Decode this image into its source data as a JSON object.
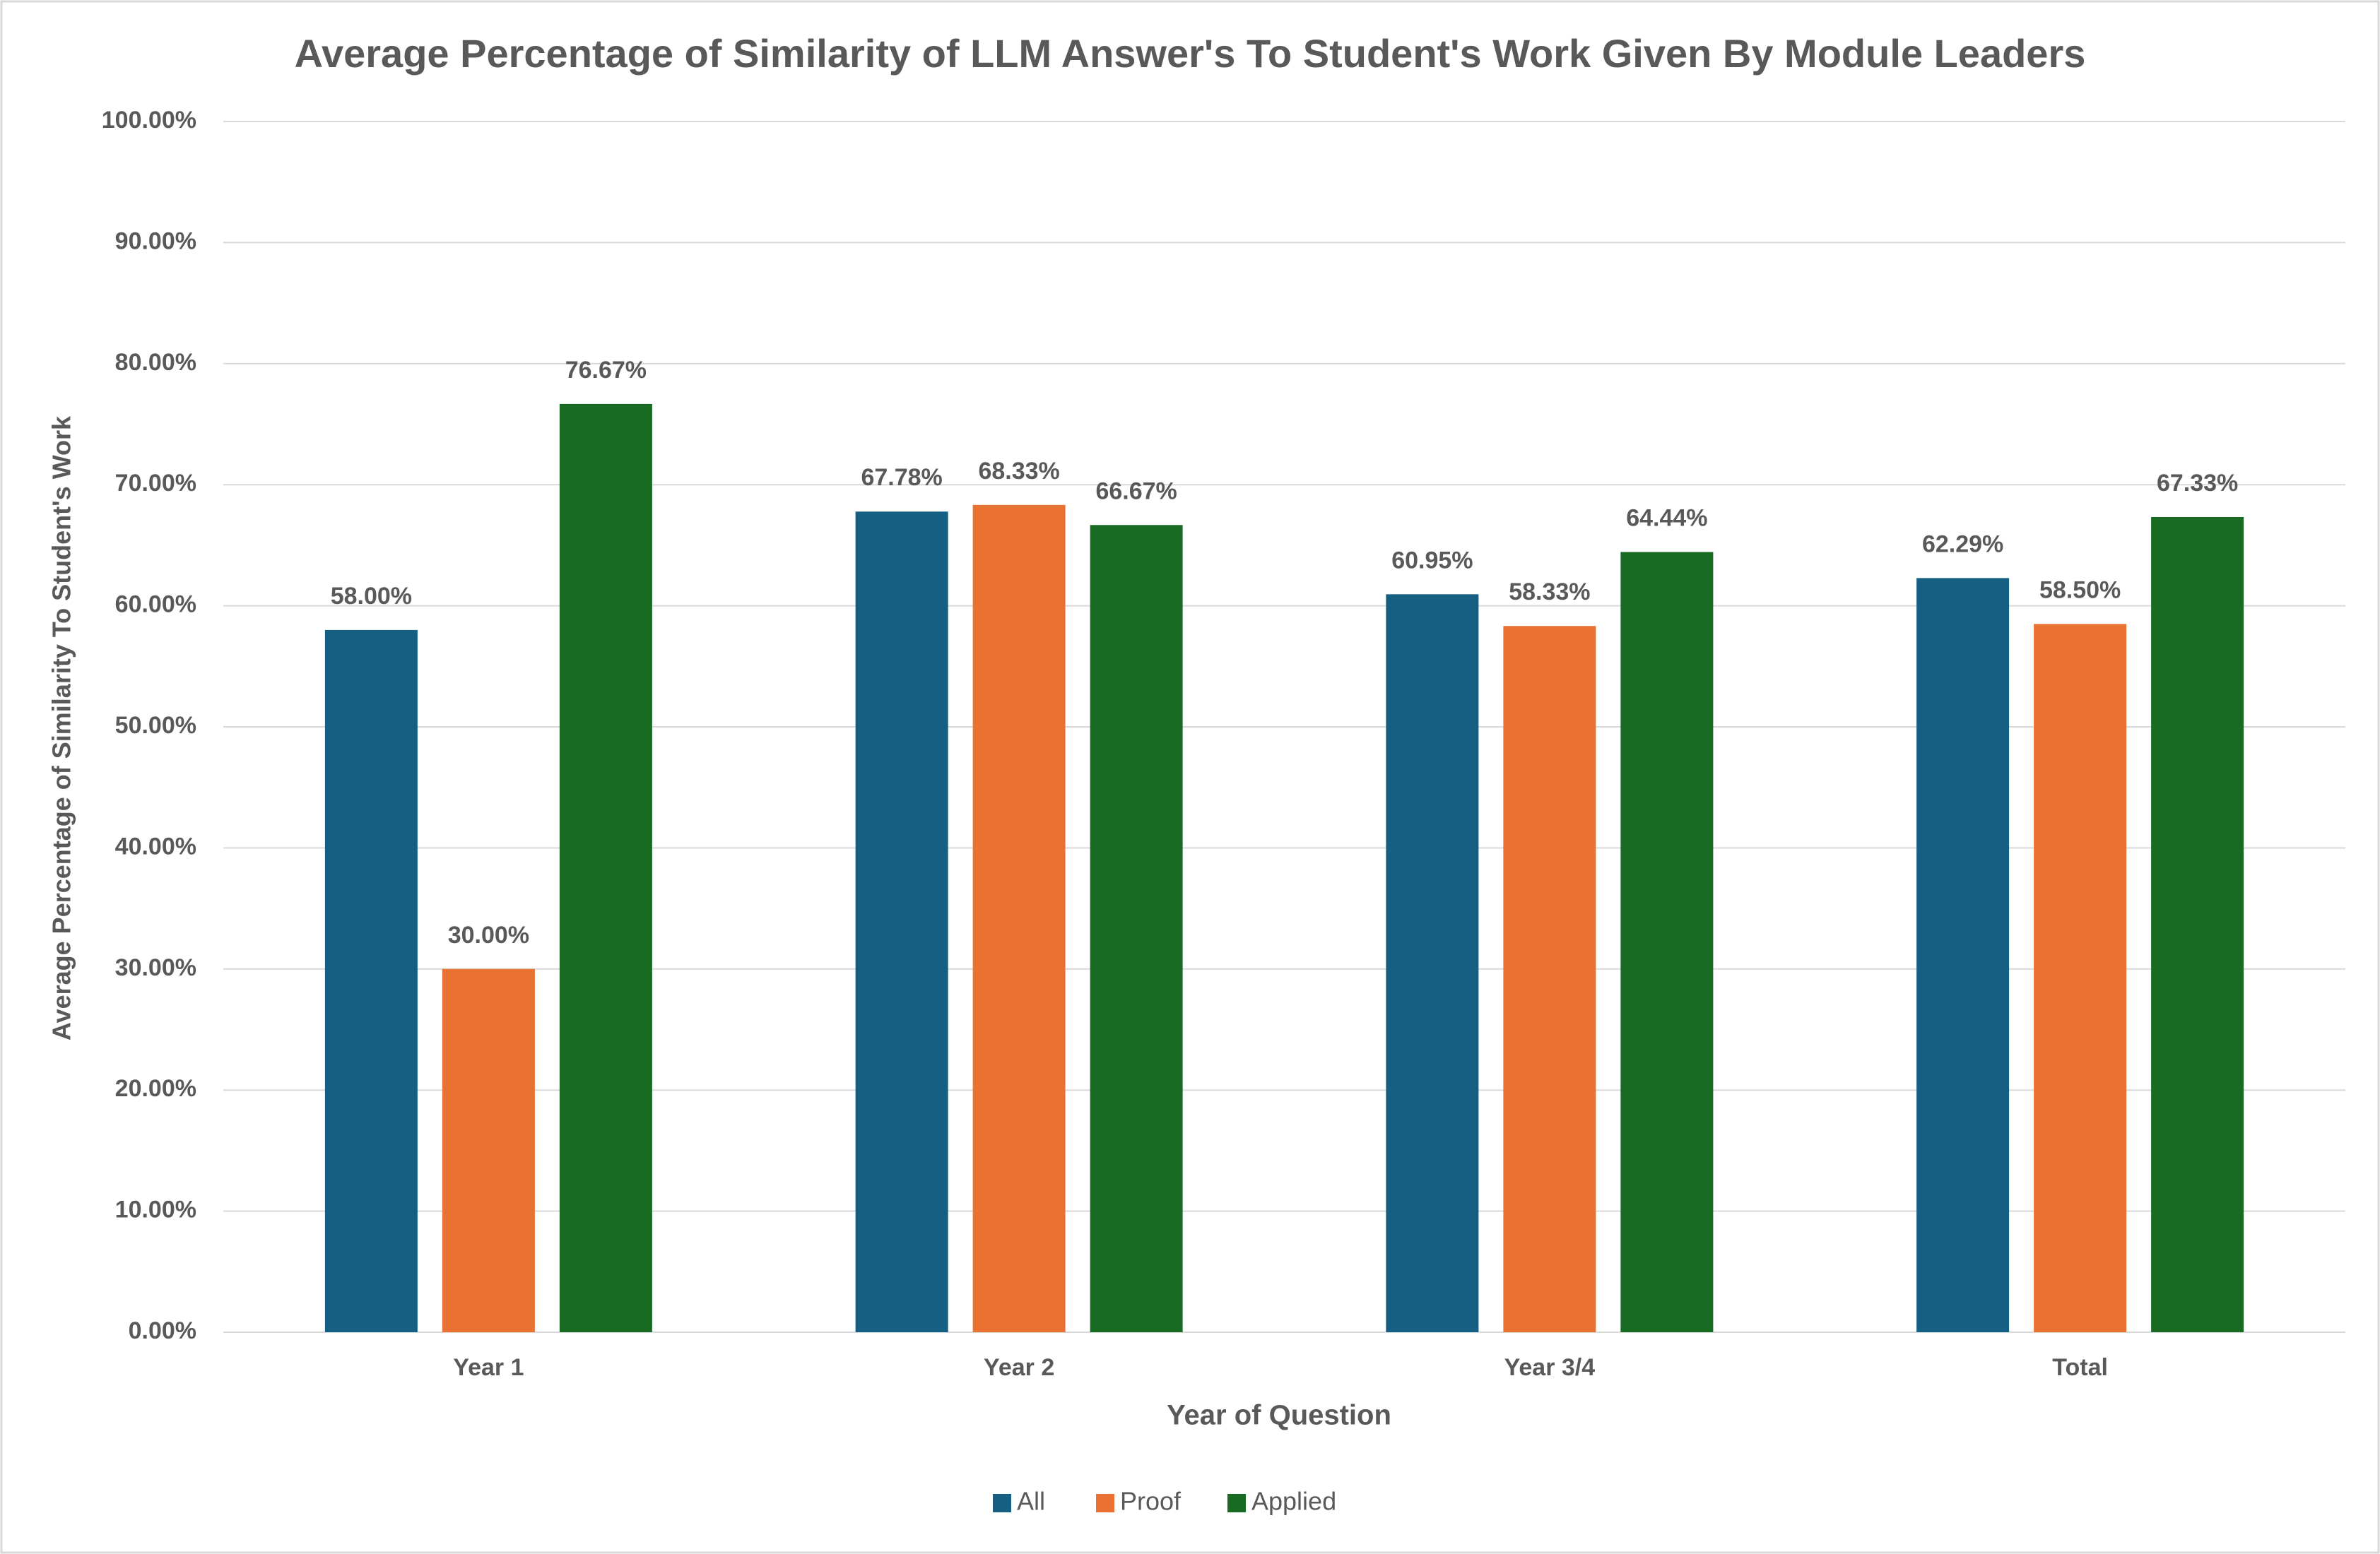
{
  "chart_data": {
    "type": "bar",
    "title": "Average Percentage of Similarity of LLM Answer's To Student's Work Given By Module Leaders",
    "x_label": "Year of Question",
    "y_label": "Average Percentage of Similarity To Student's Work",
    "categories": [
      "Year 1",
      "Year 2",
      "Year 3/4",
      "Total"
    ],
    "series": [
      {
        "name": "All",
        "color": "#156082",
        "values": [
          58.0,
          67.78,
          60.95,
          62.29
        ],
        "value_labels": [
          "58.00%",
          "67.78%",
          "60.95%",
          "62.29%"
        ]
      },
      {
        "name": "Proof",
        "color": "#E97132",
        "values": [
          30.0,
          68.33,
          58.33,
          58.5
        ],
        "value_labels": [
          "30.00%",
          "68.33%",
          "58.33%",
          "58.50%"
        ]
      },
      {
        "name": "Applied",
        "color": "#196B24",
        "values": [
          76.67,
          66.67,
          64.44,
          67.33
        ],
        "value_labels": [
          "76.67%",
          "66.67%",
          "64.44%",
          "67.33%"
        ]
      }
    ],
    "ylim": [
      0,
      100
    ],
    "yticks": [
      {
        "value": 0,
        "label": "0.00%"
      },
      {
        "value": 10,
        "label": "10.00%"
      },
      {
        "value": 20,
        "label": "20.00%"
      },
      {
        "value": 30,
        "label": "30.00%"
      },
      {
        "value": 40,
        "label": "40.00%"
      },
      {
        "value": 50,
        "label": "50.00%"
      },
      {
        "value": 60,
        "label": "60.00%"
      },
      {
        "value": 70,
        "label": "70.00%"
      },
      {
        "value": 80,
        "label": "80.00%"
      },
      {
        "value": 90,
        "label": "90.00%"
      },
      {
        "value": 100,
        "label": "100.00%"
      }
    ],
    "grid": true,
    "legend": "bottom"
  }
}
